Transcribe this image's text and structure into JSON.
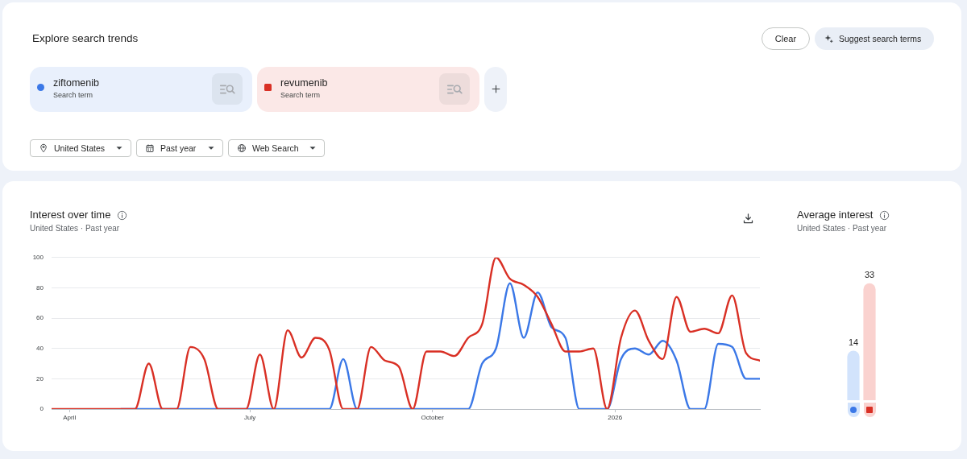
{
  "chart_data": [
    {
      "type": "other",
      "title": "Explore search trends",
      "annotations": [
        "Clear",
        "Suggest search terms",
        "Search term",
        "Search term",
        "United States",
        "Past year",
        "Web Search"
      ]
    },
    {
      "type": "line",
      "title": "Interest over time",
      "subtitle": "United States · Past year",
      "x": [
        "2025-03-23",
        "2025-03-30",
        "2025-04-06",
        "2025-04-13",
        "2025-04-20",
        "2025-04-27",
        "2025-05-04",
        "2025-05-11",
        "2025-05-18",
        "2025-05-25",
        "2025-06-01",
        "2025-06-08",
        "2025-06-15",
        "2025-06-22",
        "2025-06-29",
        "2025-07-06",
        "2025-07-13",
        "2025-07-20",
        "2025-07-27",
        "2025-08-03",
        "2025-08-10",
        "2025-08-17",
        "2025-08-24",
        "2025-08-31",
        "2025-09-07",
        "2025-09-14",
        "2025-09-21",
        "2025-09-28",
        "2025-10-05",
        "2025-10-12",
        "2025-10-19",
        "2025-10-26",
        "2025-11-02",
        "2025-11-09",
        "2025-11-16",
        "2025-11-23",
        "2025-11-30",
        "2025-12-07",
        "2025-12-14",
        "2025-12-21",
        "2025-12-28",
        "2026-01-04",
        "2026-01-11",
        "2026-01-18",
        "2026-01-25",
        "2026-02-01",
        "2026-02-08",
        "2026-02-15",
        "2026-02-22",
        "2026-03-01",
        "2026-03-08",
        "2026-03-15"
      ],
      "series": [
        {
          "name": "ziftomenib",
          "color": "#3b78e7",
          "values": [
            null,
            null,
            null,
            null,
            null,
            0,
            0,
            0,
            0,
            0,
            0,
            0,
            0,
            0,
            0,
            0,
            0,
            0,
            0,
            0,
            0,
            33,
            0,
            0,
            0,
            0,
            0,
            0,
            0,
            0,
            0,
            30,
            40,
            83,
            47,
            77,
            54,
            47,
            0,
            0,
            0,
            33,
            40,
            36,
            45,
            32,
            0,
            0,
            43,
            41,
            20,
            20
          ]
        },
        {
          "name": "revumenib",
          "color": "#d93025",
          "values": [
            0,
            0,
            0,
            0,
            0,
            0,
            0,
            30,
            0,
            0,
            41,
            33,
            0,
            0,
            0,
            36,
            0,
            52,
            34,
            47,
            39,
            0,
            0,
            41,
            32,
            28,
            0,
            38,
            38,
            35,
            47,
            56,
            100,
            86,
            82,
            74,
            56,
            38,
            38,
            40,
            0,
            47,
            65,
            45,
            33,
            74,
            51,
            53,
            50,
            75,
            37,
            32
          ]
        }
      ],
      "xlim": [
        "2025-03-23",
        "2026-03-15"
      ],
      "xticks": [
        {
          "value": "2025-04-01",
          "label": "April"
        },
        {
          "value": "2025-07-01",
          "label": "July"
        },
        {
          "value": "2025-10-01",
          "label": "October"
        },
        {
          "value": "2026-01-01",
          "label": "2026"
        }
      ],
      "ylim": [
        0,
        100
      ],
      "yticks": [
        0,
        20,
        40,
        60,
        80,
        100
      ],
      "grid": "y",
      "legend": "top",
      "marker": "none",
      "line_style": "solid"
    },
    {
      "type": "bar",
      "title": "Average interest",
      "subtitle": "United States · Past year",
      "categories": [
        null,
        null
      ],
      "values": [
        14,
        33
      ],
      "colors": [
        "#d2e3fc",
        "#fad2cf"
      ],
      "data_labels": true
    }
  ]
}
